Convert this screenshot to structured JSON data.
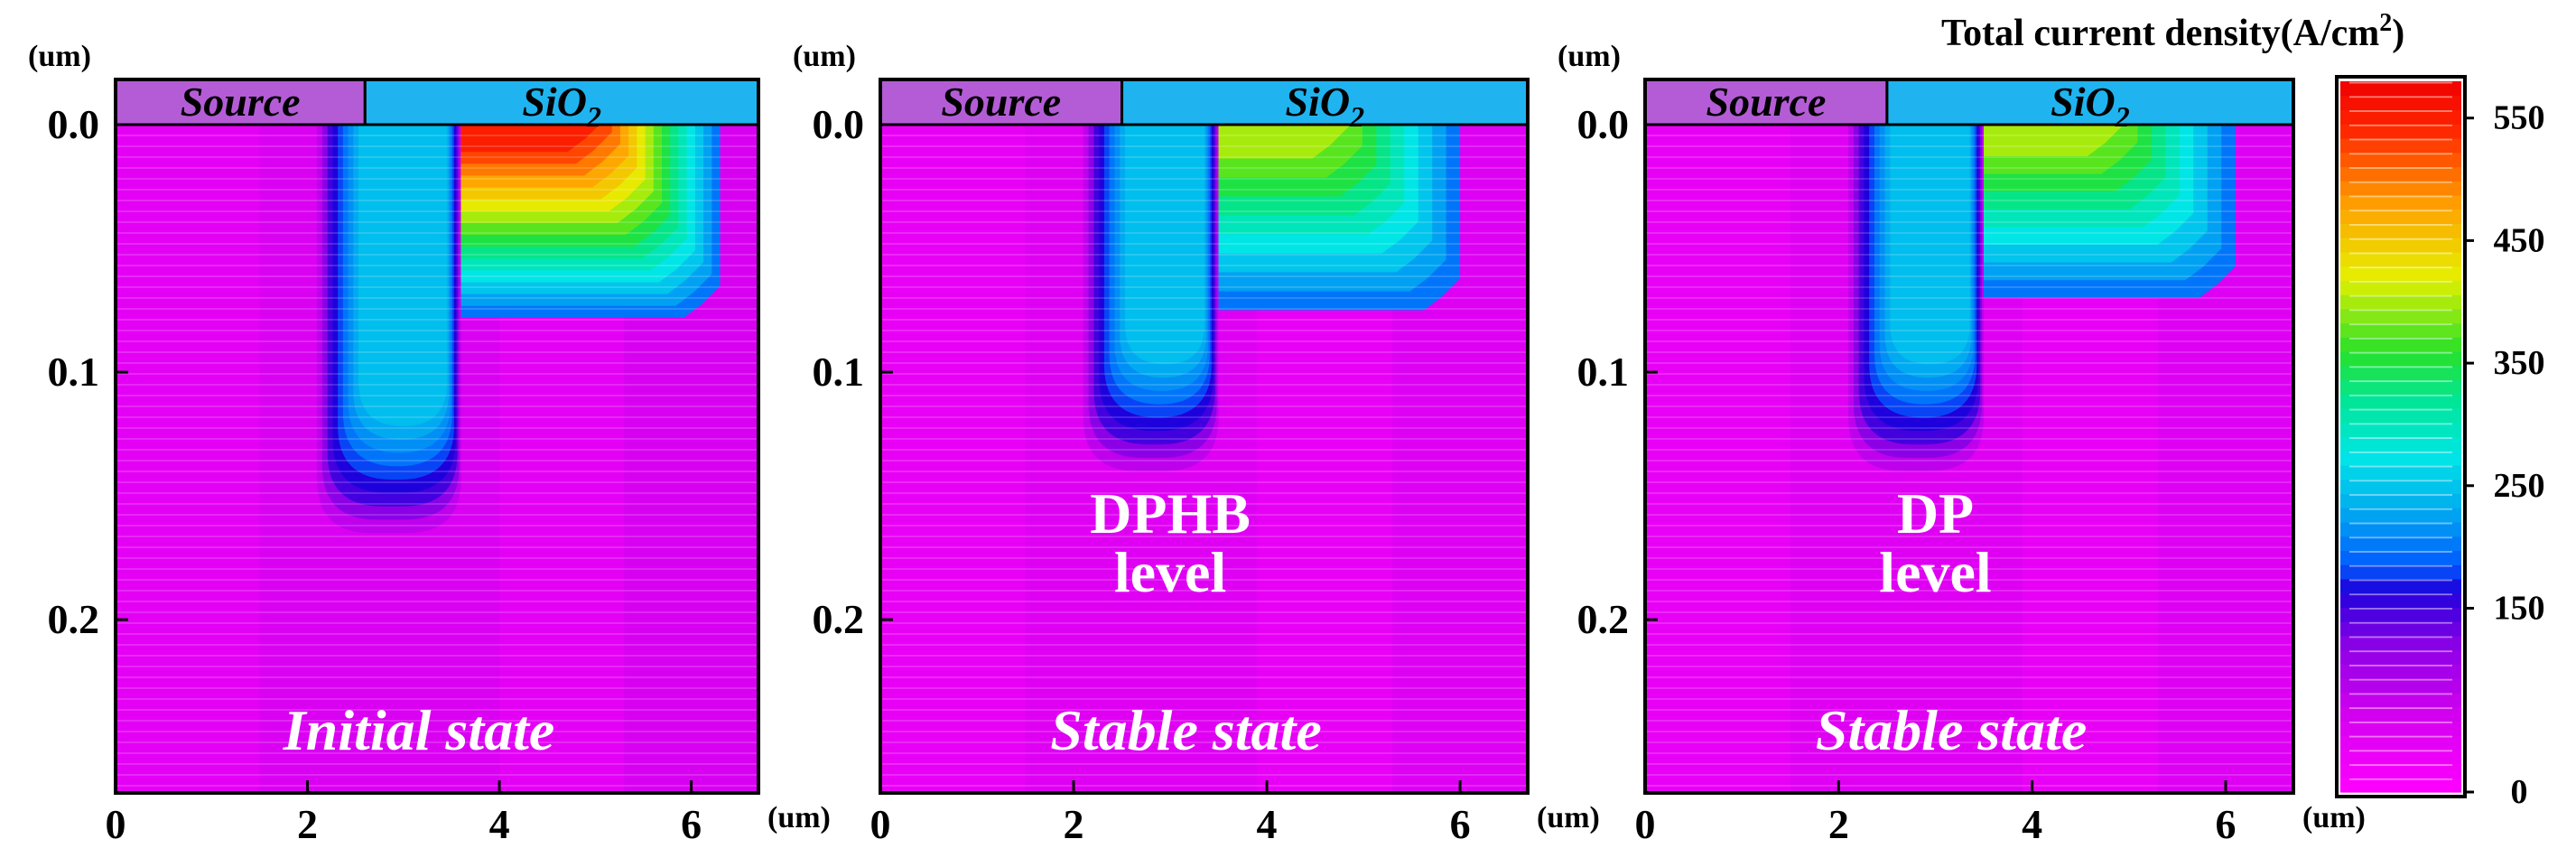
{
  "chart_data": [
    {
      "type": "heatmap",
      "panel": "a",
      "unit_label": "(um)",
      "region_labels": {
        "source": "Source",
        "oxide_base": "SiO",
        "oxide_sub": "2"
      },
      "annotation": {
        "state": "Initial state",
        "level_lines": []
      },
      "x": {
        "range": [
          0,
          6.7
        ],
        "ticks": [
          0,
          2,
          4,
          6
        ],
        "tick_labels": [
          "0",
          "2",
          "4",
          "6"
        ],
        "label": "(um)"
      },
      "y": {
        "range": [
          0,
          0.27
        ],
        "ticks": [
          0.0,
          0.1,
          0.2
        ],
        "tick_labels": [
          "0.0",
          "0.1",
          "0.2"
        ],
        "label": "(um)",
        "inverted": true
      },
      "source_end": 2.6,
      "plume": {
        "x_left": 2.1,
        "x_right": 3.6,
        "depth": 0.165,
        "value": 240
      },
      "hot_region": {
        "x_left": 3.6,
        "x_right": 6.3,
        "depth": 0.078,
        "peak": 550
      },
      "background_value": 40
    },
    {
      "type": "heatmap",
      "panel": "b",
      "unit_label": "(um)",
      "region_labels": {
        "source": "Source",
        "oxide_base": "SiO",
        "oxide_sub": "2"
      },
      "annotation": {
        "state": "Stable state",
        "level_lines": [
          "DPHB",
          "level"
        ]
      },
      "x": {
        "range": [
          0,
          6.7
        ],
        "ticks": [
          0,
          2,
          4,
          6
        ],
        "tick_labels": [
          "0",
          "2",
          "4",
          "6"
        ],
        "label": "(um)"
      },
      "y": {
        "range": [
          0,
          0.27
        ],
        "ticks": [
          0.0,
          0.1,
          0.2
        ],
        "tick_labels": [
          "0.0",
          "0.1",
          "0.2"
        ],
        "label": "(um)",
        "inverted": true
      },
      "source_end": 2.5,
      "plume": {
        "x_left": 2.1,
        "x_right": 3.5,
        "depth": 0.14,
        "value": 230
      },
      "hot_region": {
        "x_left": 3.5,
        "x_right": 6.0,
        "depth": 0.075,
        "peak": 420
      },
      "background_value": 35
    },
    {
      "type": "heatmap",
      "panel": "c",
      "unit_label": "(um)",
      "region_labels": {
        "source": "Source",
        "oxide_base": "SiO",
        "oxide_sub": "2"
      },
      "annotation": {
        "state": "Stable state",
        "level_lines": [
          "DP",
          "level"
        ]
      },
      "x": {
        "range": [
          0,
          6.7
        ],
        "ticks": [
          0,
          2,
          4,
          6
        ],
        "tick_labels": [
          "0",
          "2",
          "4",
          "6"
        ],
        "label": "(um)"
      },
      "y": {
        "range": [
          0,
          0.27
        ],
        "ticks": [
          0.0,
          0.1,
          0.2
        ],
        "tick_labels": [
          "0.0",
          "0.1",
          "0.2"
        ],
        "label": "(um)",
        "inverted": true
      },
      "source_end": 2.5,
      "plume": {
        "x_left": 2.1,
        "x_right": 3.5,
        "depth": 0.14,
        "value": 230
      },
      "hot_region": {
        "x_left": 3.5,
        "x_right": 6.1,
        "depth": 0.07,
        "peak": 400
      },
      "background_value": 35
    }
  ],
  "colorbar": {
    "title_main": "Total current density(A/cm",
    "title_sup": "2",
    "title_close": ")",
    "min": 0,
    "max": 580,
    "ticks": [
      0,
      150,
      250,
      350,
      450,
      550
    ],
    "tick_labels": [
      "0",
      "150",
      "250",
      "350",
      "450",
      "550"
    ],
    "axis_label": "(um)"
  }
}
